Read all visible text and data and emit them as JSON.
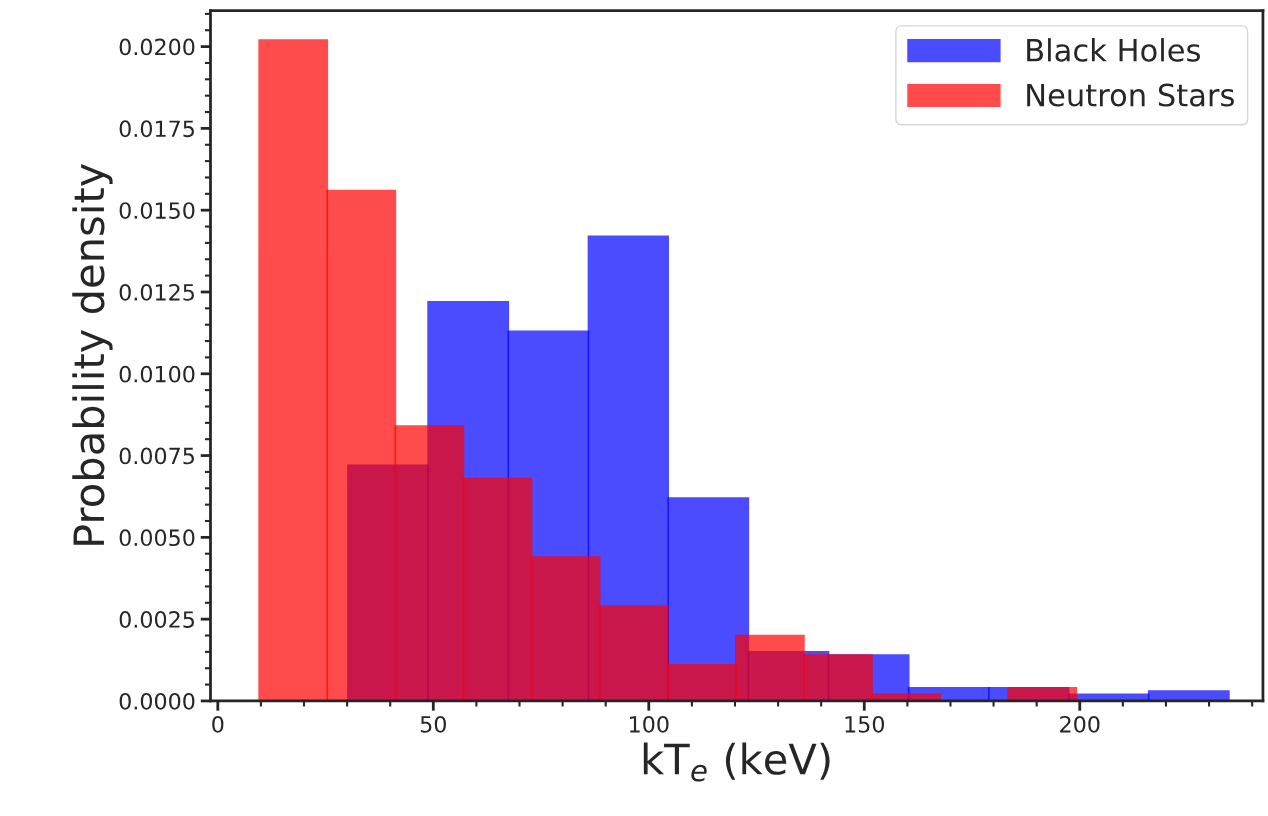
{
  "chart_data": {
    "type": "histogram",
    "xlabel": "kT$_{e}$ (keV)",
    "ylabel": "Probability density",
    "bins": [
      30.2,
      48.8,
      67.4,
      86.0,
      104.5,
      123.1,
      141.7,
      160.3,
      178.9,
      197.4,
      216.0,
      234.6
    ],
    "series": [
      {
        "name": "Black Holes",
        "color": "#0000ff",
        "values": [
          0.0072,
          0.0122,
          0.0113,
          0.0142,
          0.0062,
          0.0015,
          0.0014,
          0.0004,
          0.0004,
          0.0002,
          0.0003
        ]
      },
      {
        "name": "Neutron Stars",
        "color": "#ff0000",
        "bins": [
          9.6,
          25.4,
          41.2,
          57.0,
          72.8,
          88.6,
          104.4,
          120.2,
          136.0,
          151.8,
          167.6,
          183.4,
          199.2
        ],
        "values": [
          0.0202,
          0.0156,
          0.0084,
          0.0068,
          0.0044,
          0.0029,
          0.0011,
          0.002,
          0.0014,
          0.0002,
          0,
          0.0004
        ]
      }
    ],
    "xlim": [
      -1.7,
      242.5
    ],
    "xticks": [
      0,
      50,
      100,
      150,
      200
    ],
    "ylim": [
      0,
      0.0211
    ],
    "yticks": [
      {
        "value": 0,
        "label": "0.0000"
      },
      {
        "value": 0.0025,
        "label": "0.0025"
      },
      {
        "value": 0.005,
        "label": "0.0050"
      },
      {
        "value": 0.0075,
        "label": "0.0075"
      },
      {
        "value": 0.01,
        "label": "0.0100"
      },
      {
        "value": 0.0125,
        "label": "0.0125"
      },
      {
        "value": 0.015,
        "label": "0.0150"
      },
      {
        "value": 0.0175,
        "label": "0.0175"
      },
      {
        "value": 0.02,
        "label": "0.0200"
      }
    ],
    "legend": "top right",
    "grid": false
  }
}
